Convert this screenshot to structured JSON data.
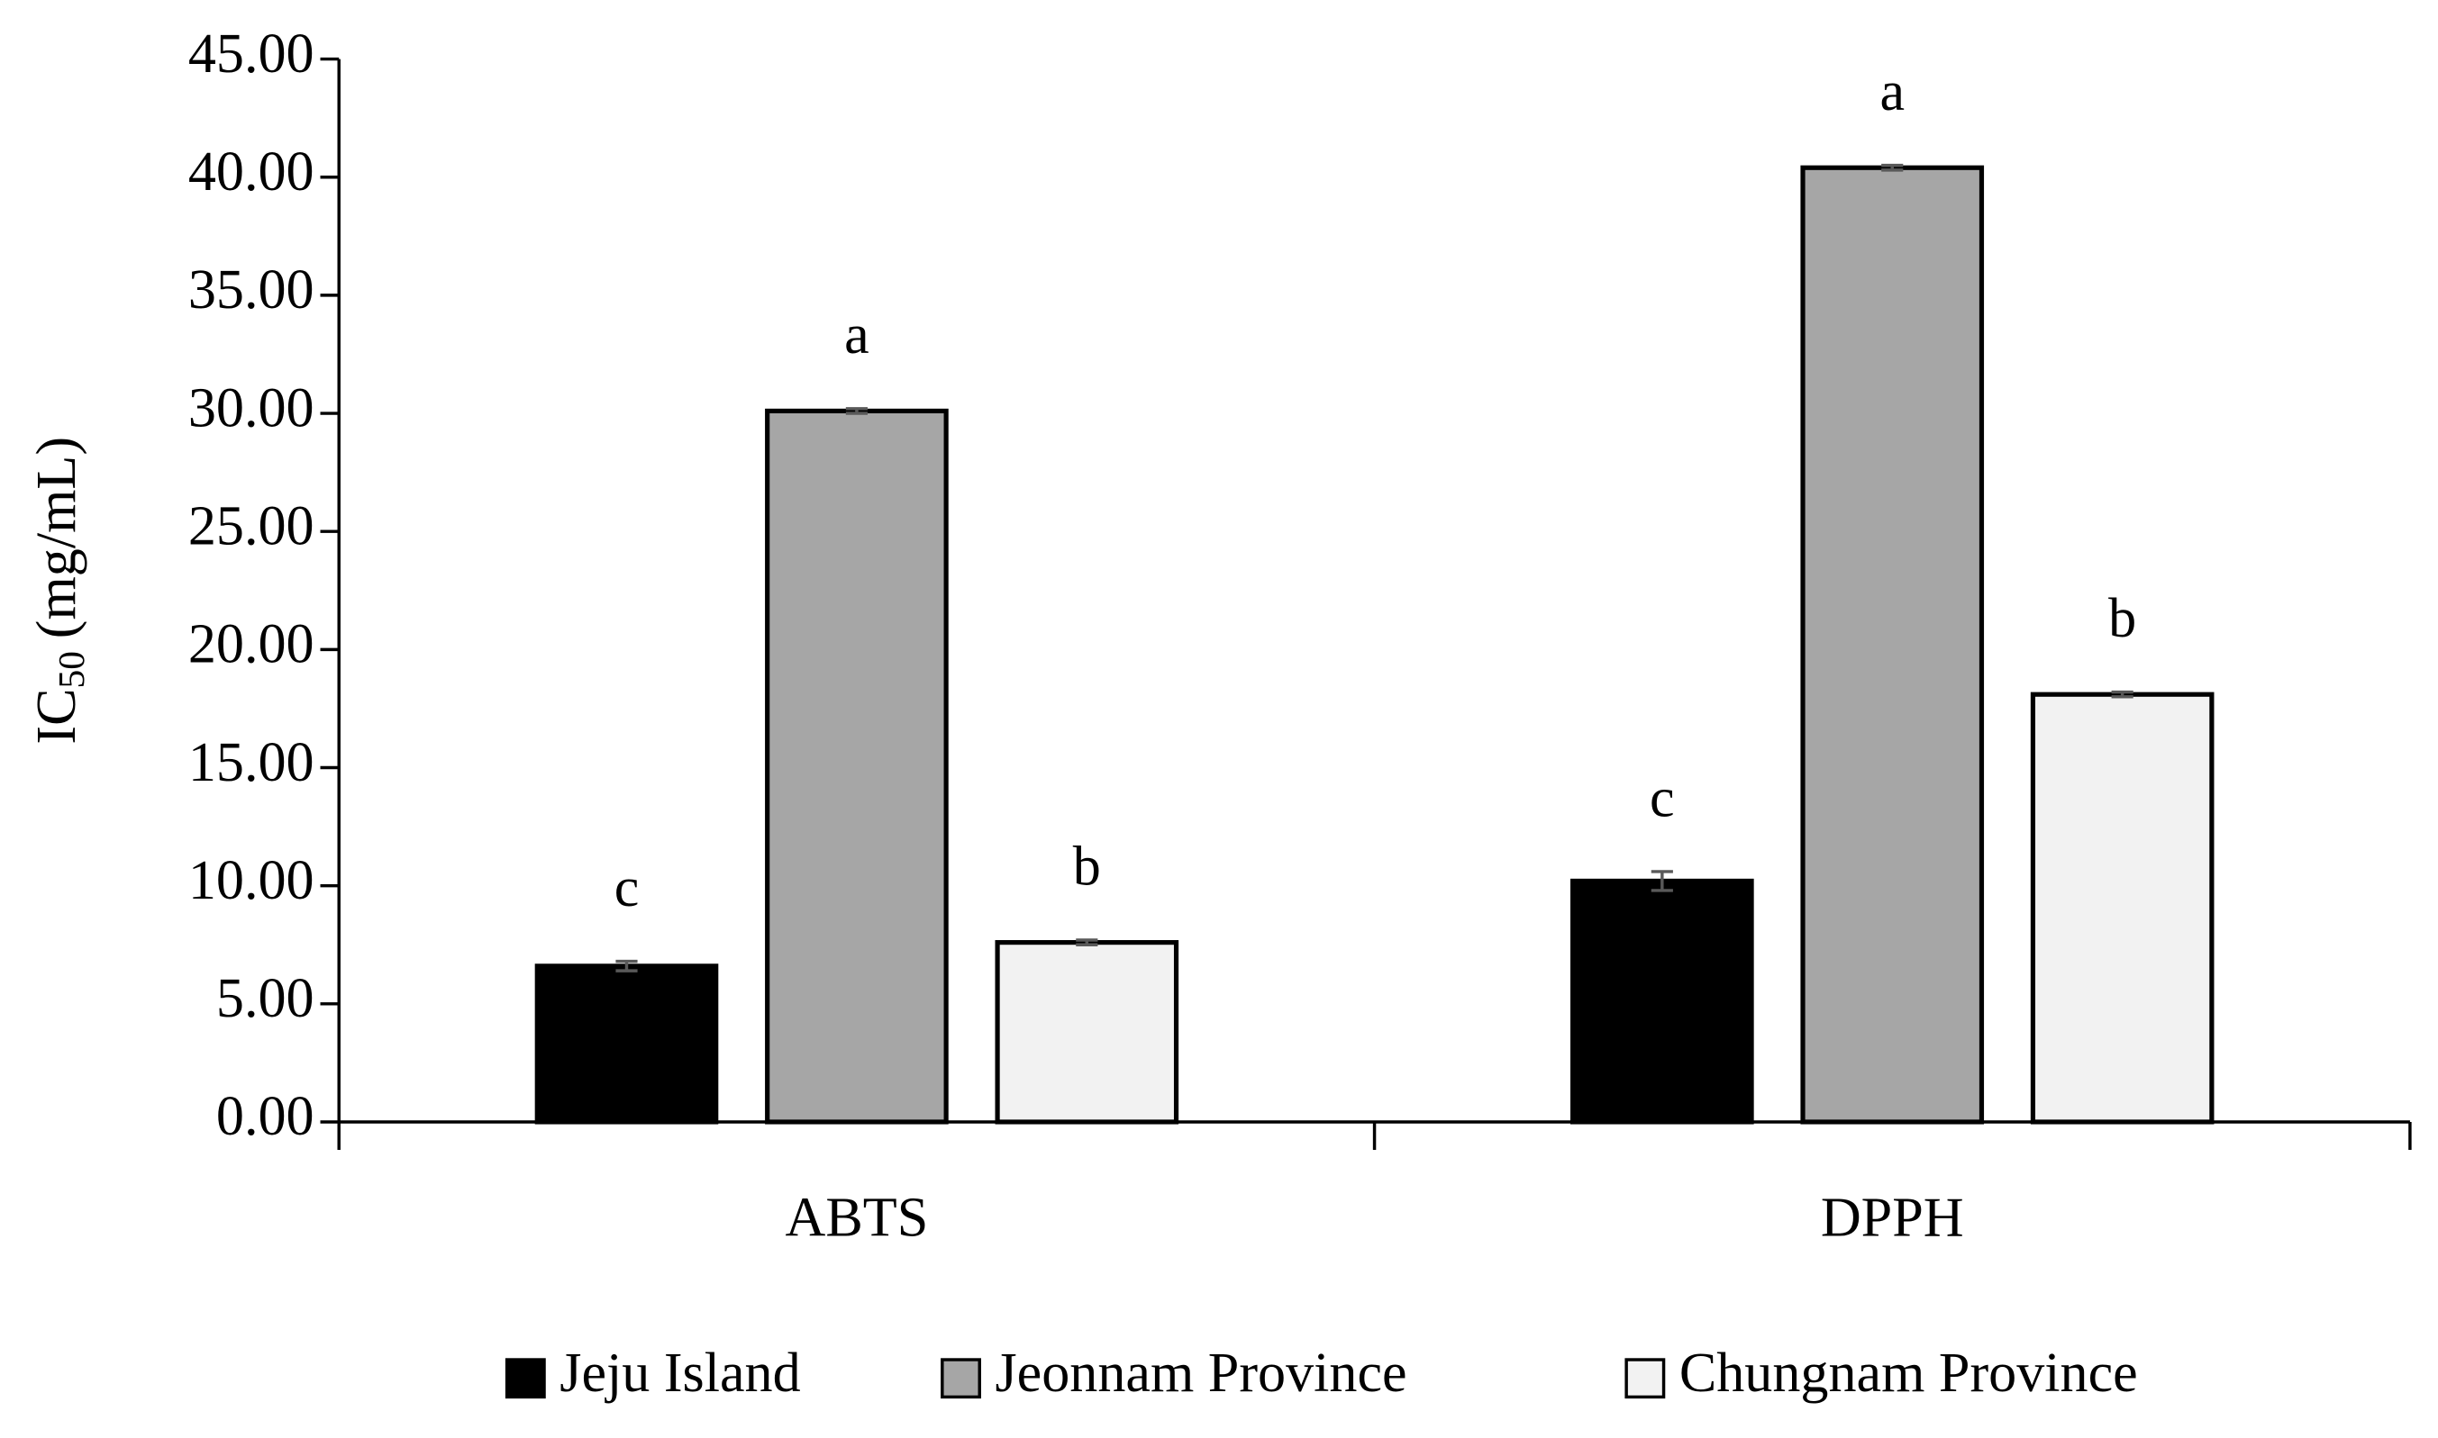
{
  "chart_data": {
    "type": "bar",
    "y_label": {
      "main": "IC",
      "sub": "50",
      "rest": "(mg/mL)"
    },
    "categories": [
      "ABTS",
      "DPPH"
    ],
    "series": [
      {
        "name": "Jeju Island",
        "color": "#000000",
        "values": [
          6.6,
          10.2
        ],
        "errors": [
          0.2,
          0.4
        ],
        "labels": [
          "c",
          "c"
        ]
      },
      {
        "name": "Jeonnam Province",
        "color": "#a6a6a6",
        "values": [
          30.1,
          40.4
        ],
        "errors": [
          0.1,
          0.1
        ],
        "labels": [
          "a",
          "a"
        ]
      },
      {
        "name": "Chungnam Province",
        "color": "#f2f2f2",
        "values": [
          7.6,
          18.1
        ],
        "errors": [
          0.1,
          0.1
        ],
        "labels": [
          "b",
          "b"
        ]
      }
    ],
    "ylim": [
      0,
      45
    ],
    "yticks": [
      {
        "value": 0,
        "label": "0.00"
      },
      {
        "value": 5,
        "label": "5.00"
      },
      {
        "value": 10,
        "label": "10.00"
      },
      {
        "value": 15,
        "label": "15.00"
      },
      {
        "value": 20,
        "label": "20.00"
      },
      {
        "value": 25,
        "label": "25.00"
      },
      {
        "value": 30,
        "label": "30.00"
      },
      {
        "value": 35,
        "label": "35.00"
      },
      {
        "value": 40,
        "label": "40.00"
      },
      {
        "value": 45,
        "label": "45.00"
      }
    ],
    "legend": "bottom"
  }
}
